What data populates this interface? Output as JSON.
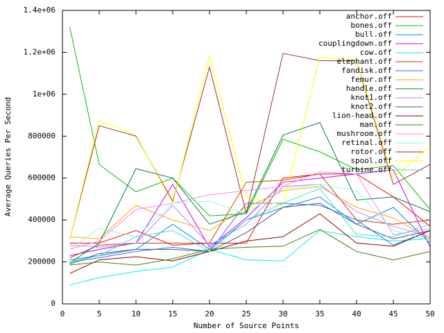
{
  "chart_data": {
    "type": "line",
    "xlabel": "Number of Source Points",
    "ylabel": "Average Queries Per Second",
    "x": [
      1,
      5,
      10,
      15,
      20,
      25,
      30,
      35,
      40,
      45,
      50
    ],
    "xlim": [
      0,
      50
    ],
    "xticks": [
      0,
      5,
      10,
      15,
      20,
      25,
      30,
      35,
      40,
      45,
      50
    ],
    "ylim": [
      0,
      1400000
    ],
    "yticks": [
      0,
      200000,
      400000,
      600000,
      800000,
      {
        "value": 1000000,
        "label": "1e+06"
      },
      {
        "value": 1200000,
        "label": "1.2e+06"
      },
      {
        "value": 1400000,
        "label": "1.4e+06"
      }
    ],
    "grid": false,
    "legend": "upper right",
    "series": [
      {
        "name": "anchor.off",
        "color": "#ff0000",
        "values": [
          290000,
          290000,
          350000,
          280000,
          290000,
          290000,
          600000,
          620000,
          620000,
          510000,
          370000
        ]
      },
      {
        "name": "bones.off",
        "color": "#00c000",
        "values": [
          1320000,
          665000,
          535000,
          600000,
          420000,
          430000,
          785000,
          725000,
          640000,
          660000,
          450000
        ]
      },
      {
        "name": "bull.off",
        "color": "#0080ff",
        "values": [
          210000,
          230000,
          260000,
          380000,
          260000,
          400000,
          460000,
          510000,
          380000,
          460000,
          290000
        ]
      },
      {
        "name": "couplingdown.off",
        "color": "#c000ff",
        "values": [
          230000,
          260000,
          290000,
          570000,
          270000,
          410000,
          580000,
          600000,
          620000,
          640000,
          270000
        ]
      },
      {
        "name": "cow.off",
        "color": "#00eeee",
        "values": [
          90000,
          125000,
          155000,
          175000,
          260000,
          210000,
          205000,
          350000,
          320000,
          300000,
          310000
        ]
      },
      {
        "name": "elephant.off",
        "color": "#c04000",
        "values": [
          220000,
          280000,
          290000,
          290000,
          290000,
          580000,
          590000,
          620000,
          400000,
          380000,
          400000
        ]
      },
      {
        "name": "fandisk.off",
        "color": "#4169e1",
        "values": [
          200000,
          220000,
          250000,
          270000,
          250000,
          480000,
          480000,
          470000,
          400000,
          280000,
          350000
        ]
      },
      {
        "name": "femur.off",
        "color": "#ffa500",
        "values": [
          320000,
          310000,
          470000,
          400000,
          350000,
          460000,
          540000,
          560000,
          460000,
          410000,
          310000
        ]
      },
      {
        "name": "handle.off",
        "color": "#008040",
        "values": [
          195000,
          290000,
          645000,
          600000,
          380000,
          440000,
          805000,
          865000,
          495000,
          510000,
          440000
        ]
      },
      {
        "name": "knot1.off",
        "color": "#c080ff",
        "values": [
          280000,
          270000,
          290000,
          470000,
          280000,
          380000,
          560000,
          570000,
          440000,
          370000,
          320000
        ]
      },
      {
        "name": "knot2.off",
        "color": "#306080",
        "values": [
          190000,
          240000,
          260000,
          260000,
          250000,
          340000,
          460000,
          480000,
          380000,
          310000,
          350000
        ]
      },
      {
        "name": "lion-head.off",
        "color": "#8b0000",
        "values": [
          145000,
          210000,
          225000,
          205000,
          250000,
          300000,
          320000,
          430000,
          290000,
          275000,
          350000
        ]
      },
      {
        "name": "man.off",
        "color": "#408000",
        "values": [
          185000,
          200000,
          185000,
          215000,
          260000,
          270000,
          275000,
          355000,
          250000,
          210000,
          250000
        ]
      },
      {
        "name": "mushroom.off",
        "color": "#ff80ff",
        "values": [
          260000,
          300000,
          450000,
          480000,
          520000,
          540000,
          560000,
          630000,
          620000,
          330000,
          360000
        ]
      },
      {
        "name": "retinal.off",
        "color": "#7fffd4",
        "values": [
          260000,
          360000,
          320000,
          480000,
          490000,
          430000,
          550000,
          570000,
          540000,
          350000,
          300000
        ]
      },
      {
        "name": "rotor.off",
        "color": "#a52a2a",
        "values": [
          310000,
          850000,
          800000,
          490000,
          1130000,
          430000,
          1195000,
          1160000,
          1160000,
          570000,
          665000
        ]
      },
      {
        "name": "spool.off",
        "color": "#ffff00",
        "values": [
          310000,
          875000,
          805000,
          480000,
          1185000,
          510000,
          470000,
          1180000,
          1160000,
          600000,
          750000
        ]
      },
      {
        "name": "turbine.off",
        "color": "#40e0d0",
        "values": [
          200000,
          230000,
          320000,
          350000,
          250000,
          400000,
          480000,
          550000,
          330000,
          320000,
          380000
        ]
      }
    ]
  }
}
